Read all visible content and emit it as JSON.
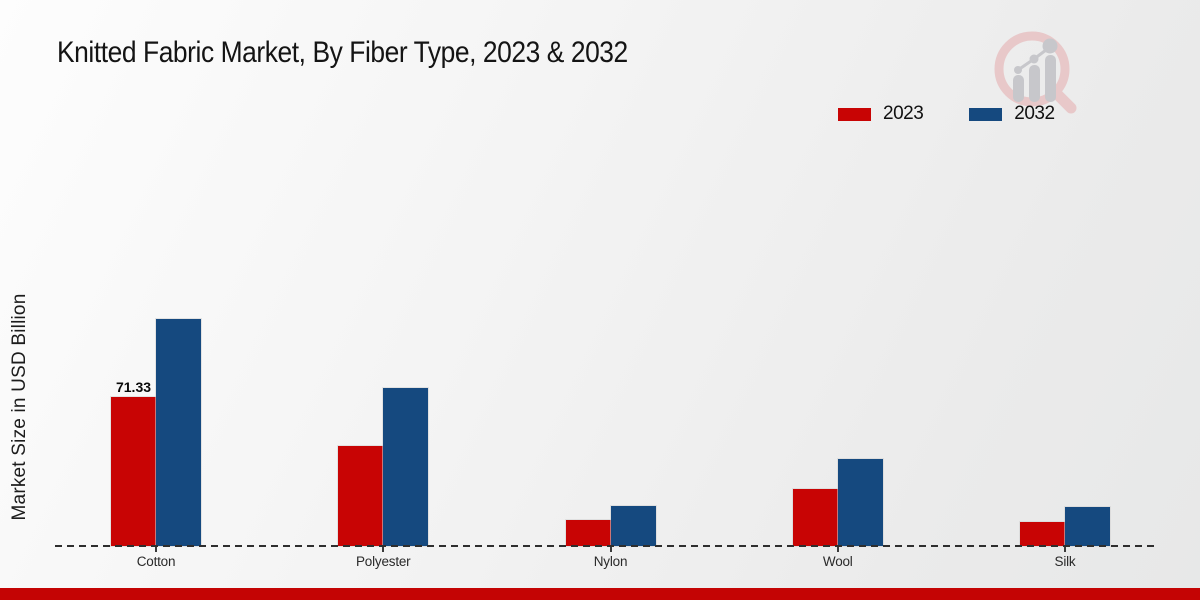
{
  "title": "Knitted Fabric Market, By Fiber Type, 2023 & 2032",
  "watermark_icon": "growth-bars-magnifier-logo",
  "chart_data": {
    "type": "bar",
    "title": "Knitted Fabric Market, By Fiber Type, 2023 & 2032",
    "categories": [
      "Cotton",
      "Polyester",
      "Nylon",
      "Wool",
      "Silk"
    ],
    "series": [
      {
        "name": "2023",
        "color": "#c80404",
        "values": [
          71.33,
          47.9,
          12.4,
          27.3,
          11.5
        ]
      },
      {
        "name": "2032",
        "color": "#15497f",
        "values": [
          108.7,
          75.6,
          19.2,
          41.6,
          18.7
        ]
      }
    ],
    "xlabel": "",
    "ylabel": "Market Size in USD Billion",
    "ylim": [
      0,
      190
    ],
    "grid": false,
    "legend_position": "top-right",
    "baseline_style": "dashed",
    "bar_labels": [
      {
        "series_index": 0,
        "category_index": 0,
        "text": "71.33"
      }
    ]
  },
  "footer": {
    "accent_color": "#c40404"
  }
}
